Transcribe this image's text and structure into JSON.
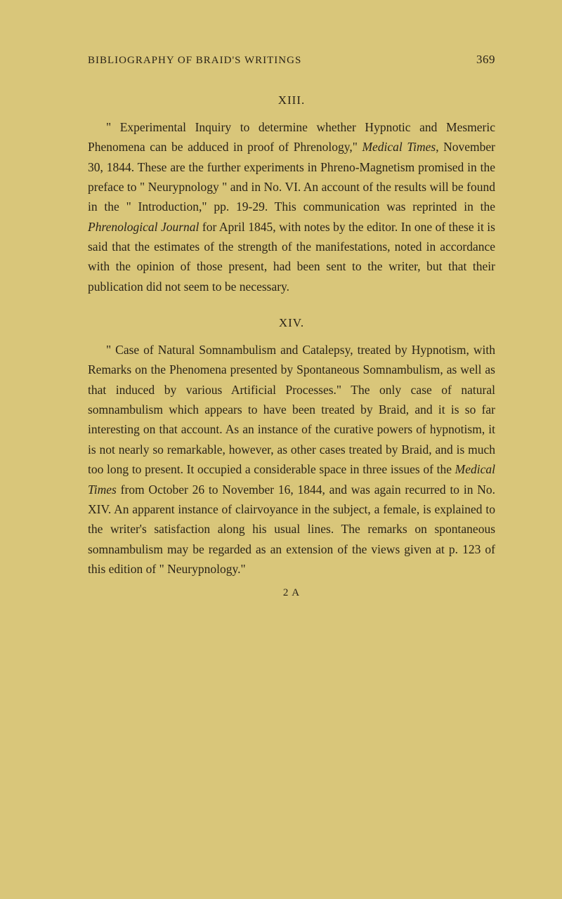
{
  "runningHeader": {
    "title": "BIBLIOGRAPHY OF BRAID'S WRITINGS",
    "pageNumber": "369"
  },
  "sections": [
    {
      "number": "XIII.",
      "paragraphHtml": "\" Experimental Inquiry to determine whether Hypnotic and Mesmeric Phenomena can be adduced in proof of Phrenology,\" <span class=\"italic\">Medical Times</span>, November 30, 1844. These are the further experiments in Phreno-Magnetism promised in the preface to \" Neurypnology \" and in No. VI. An account of the results will be found in the \" Introduction,\" pp. 19-29. This communication was reprinted in the <span class=\"italic\">Phrenological Journal</span> for April 1845, with notes by the editor. In one of these it is said that the estimates of the strength of the manifestations, noted in accordance with the opinion of those present, had been sent to the writer, but that their publication did not seem to be necessary."
    },
    {
      "number": "XIV.",
      "paragraphHtml": "\" Case of Natural Somnambulism and Catalepsy, treated by Hypnotism, with Remarks on the Phenomena presented by Spontaneous Somnambulism, as well as that induced by various Artificial Processes.\" The only case of natural somnambulism which appears to have been treated by Braid, and it is so far interesting on that account. As an instance of the curative powers of hypnotism, it is not nearly so remarkable, however, as other cases treated by Braid, and is much too long to present. It occupied a considerable space in three issues of the <span class=\"italic\">Medical Times</span> from October 26 to November 16, 1844, and was again recurred to in No. XIV. An apparent instance of clairvoyance in the subject, a female, is explained to the writer's satisfaction along his usual lines. The remarks on spontaneous somnambulism may be regarded as an extension of the views given at p. 123 of this edition of \" Neurypnology.\""
    }
  ],
  "signatureMark": "2 A",
  "colors": {
    "background": "#d9c67a",
    "text": "#2a2317"
  },
  "typography": {
    "bodyFontSize": 17.5,
    "lineHeight": 1.62,
    "fontFamily": "Georgia, Times New Roman, serif"
  }
}
